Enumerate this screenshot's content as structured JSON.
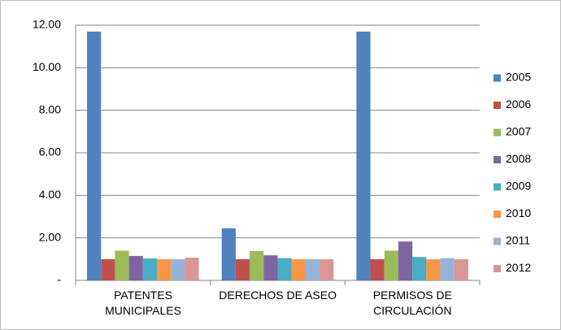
{
  "chart_data": {
    "type": "bar",
    "categories": [
      "PATENTES\nMUNICIPALES",
      "DERECHOS DE ASEO",
      "PERMISOS DE\nCIRCULACIÓN"
    ],
    "series": [
      {
        "name": "2005",
        "color": "#4f81bd",
        "values": [
          11.7,
          2.45,
          11.7
        ]
      },
      {
        "name": "2006",
        "color": "#c0504d",
        "values": [
          1.0,
          1.0,
          1.0
        ]
      },
      {
        "name": "2007",
        "color": "#9bbb59",
        "values": [
          1.4,
          1.38,
          1.4
        ]
      },
      {
        "name": "2008",
        "color": "#8064a2",
        "values": [
          1.15,
          1.18,
          1.83
        ]
      },
      {
        "name": "2009",
        "color": "#4bacc6",
        "values": [
          1.03,
          1.05,
          1.1
        ]
      },
      {
        "name": "2010",
        "color": "#f79646",
        "values": [
          1.0,
          1.0,
          1.0
        ]
      },
      {
        "name": "2011",
        "color": "#95b3d7",
        "values": [
          1.0,
          1.0,
          1.05
        ]
      },
      {
        "name": "2012",
        "color": "#da9694",
        "values": [
          1.07,
          1.0,
          1.0
        ]
      }
    ],
    "ylim": [
      0,
      12
    ],
    "yticks": [
      {
        "value": 0,
        "label": "-"
      },
      {
        "value": 2,
        "label": "2.00"
      },
      {
        "value": 4,
        "label": "4.00"
      },
      {
        "value": 6,
        "label": "6.00"
      },
      {
        "value": 8,
        "label": "8.00"
      },
      {
        "value": 10,
        "label": "10.00"
      },
      {
        "value": 12,
        "label": "12.00"
      }
    ],
    "grid": true,
    "legend": "right"
  }
}
